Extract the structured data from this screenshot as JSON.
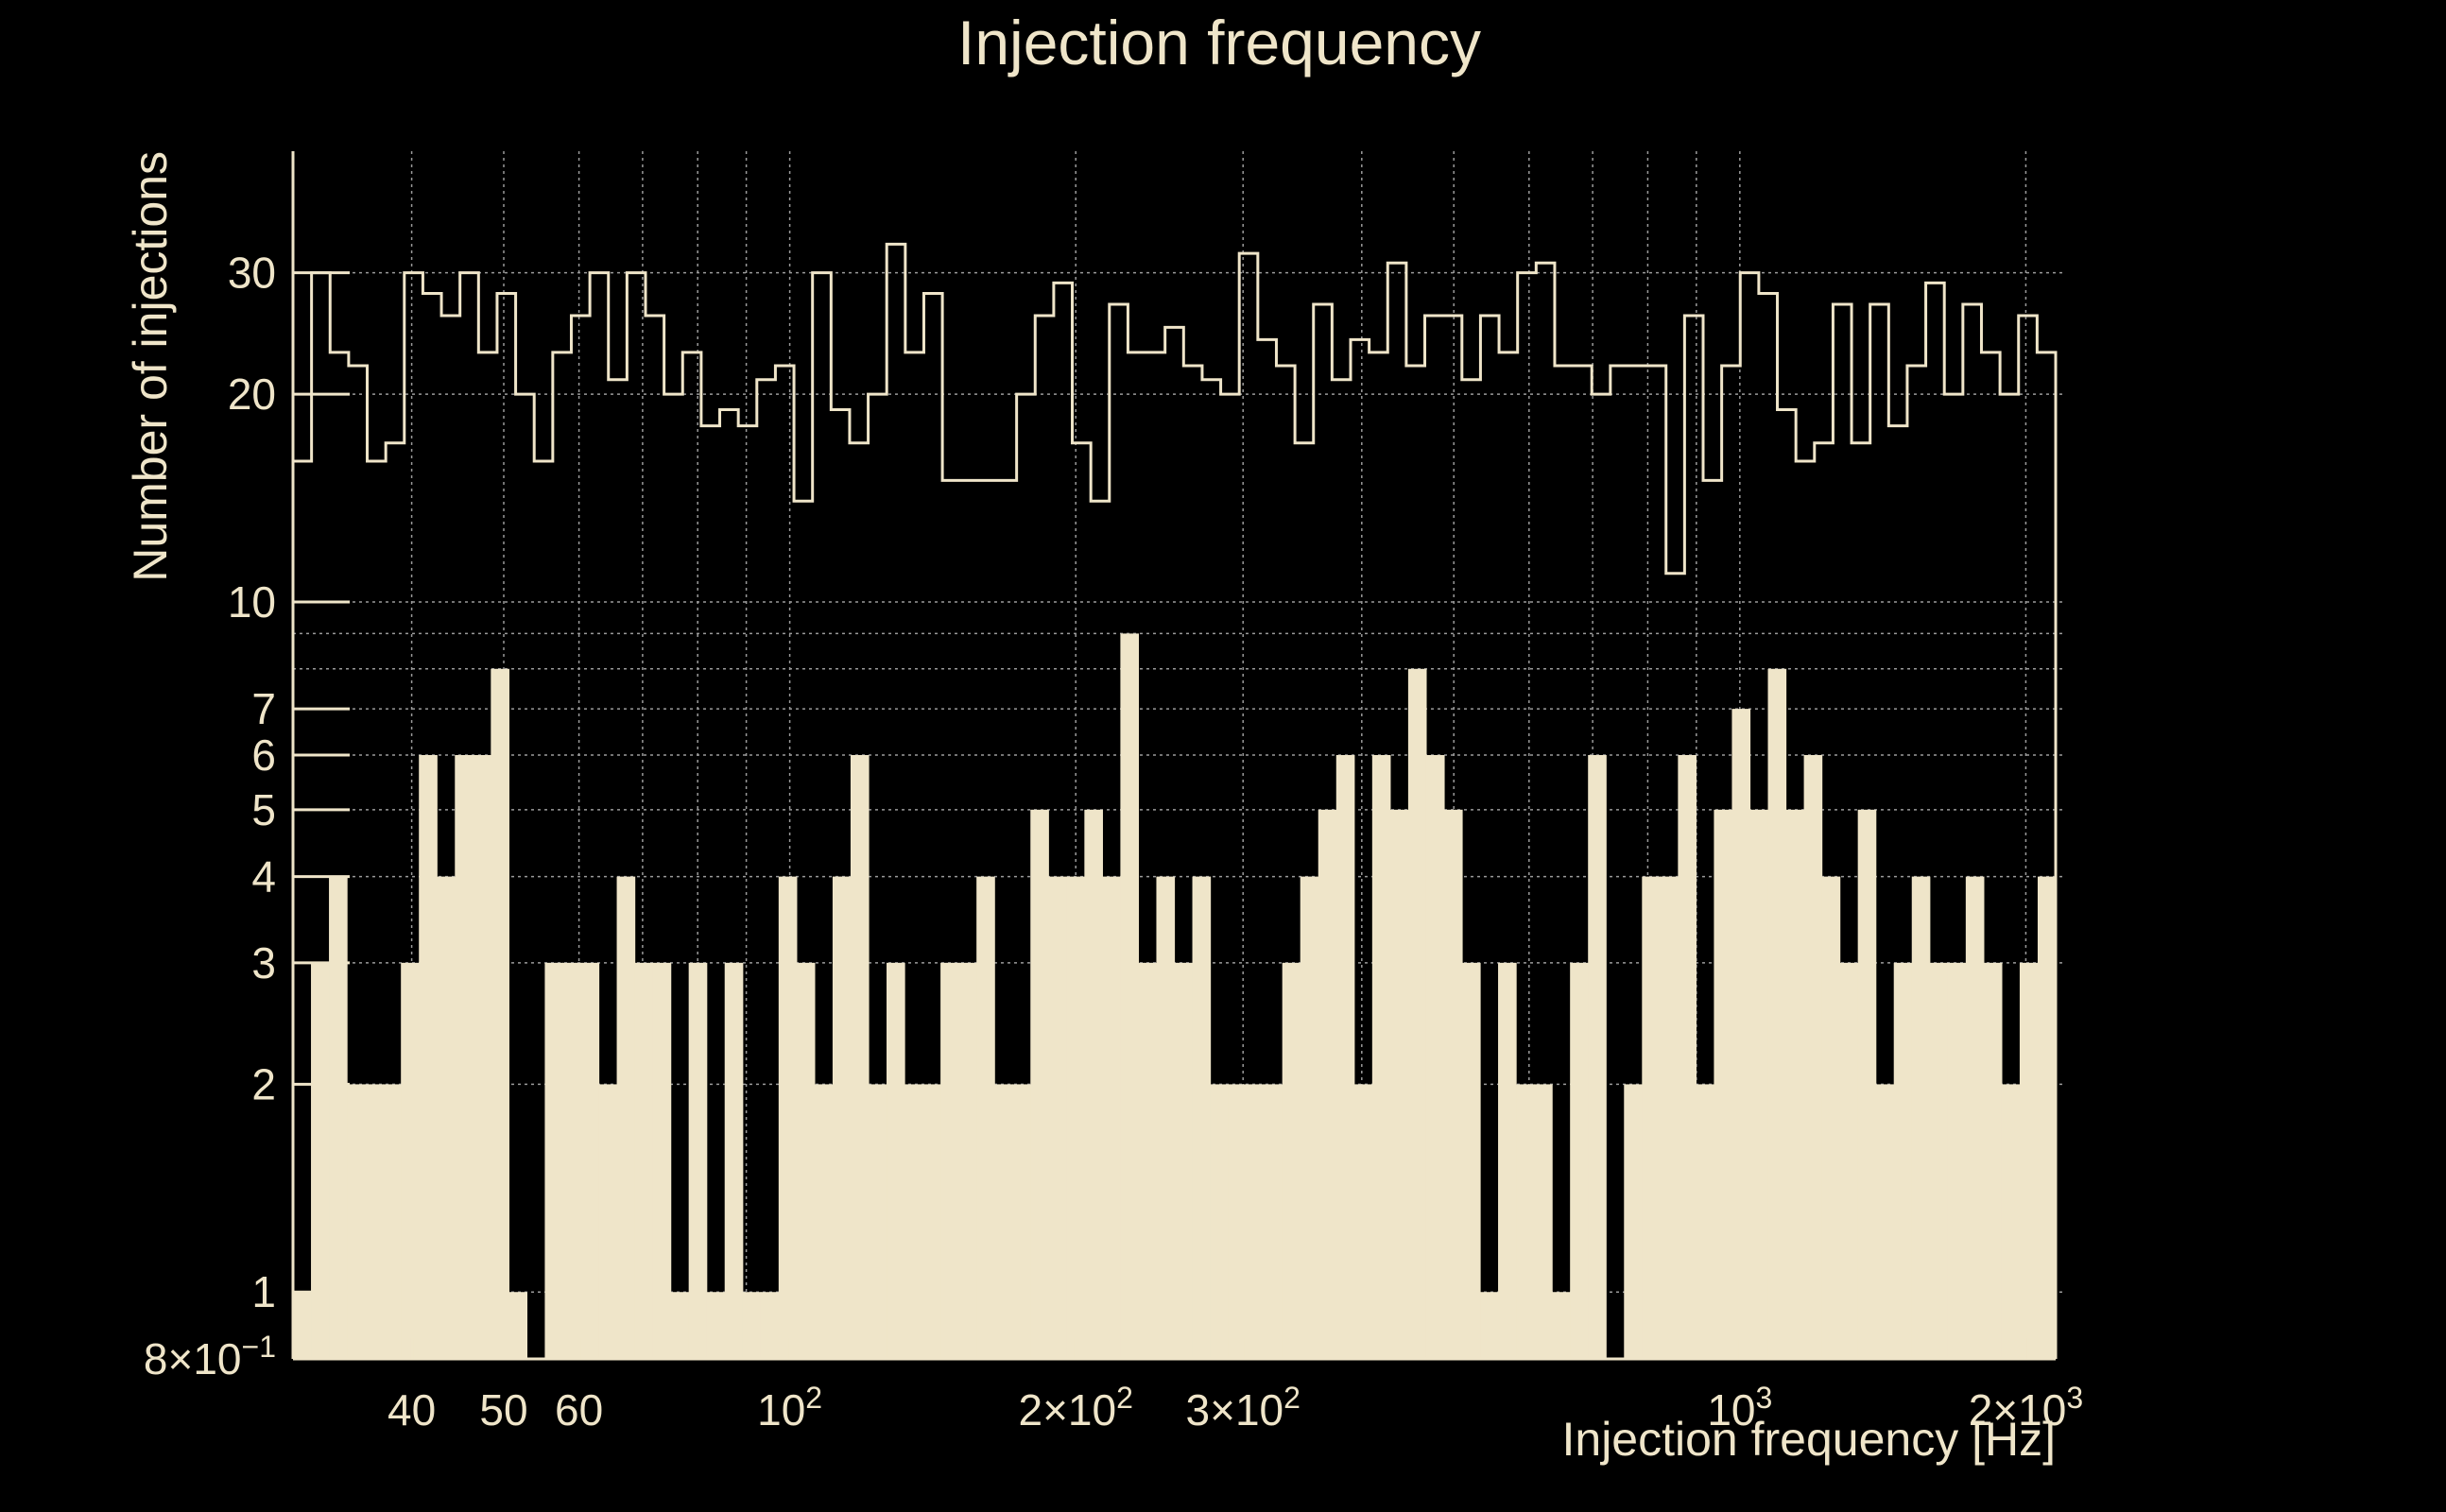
{
  "chart_data": {
    "type": "bar",
    "title": "Injection frequency",
    "xlabel": "Injection frequency [Hz]",
    "ylabel": "Number of injections",
    "x_scale": "log",
    "y_scale": "log",
    "xlim": [
      30,
      2150
    ],
    "ylim": [
      0.8,
      45
    ],
    "grid": true,
    "colors": {
      "background": "#000000",
      "foreground": "#efe5c9",
      "grid": "#9a9a9a"
    },
    "x_ticks": [
      {
        "value": 40,
        "label": "40"
      },
      {
        "value": 50,
        "label": "50"
      },
      {
        "value": 60,
        "label": "60"
      },
      {
        "value": 100,
        "label": "10",
        "sup": "2"
      },
      {
        "value": 200,
        "label": "2×10",
        "sup": "2"
      },
      {
        "value": 300,
        "label": "3×10",
        "sup": "2"
      },
      {
        "value": 1000,
        "label": "10",
        "sup": "3"
      },
      {
        "value": 2000,
        "label": "2×10",
        "sup": "3"
      }
    ],
    "y_ticks": [
      {
        "value": 0.8,
        "label": "8×10",
        "sup": "−1"
      },
      {
        "value": 1,
        "label": "1"
      },
      {
        "value": 2,
        "label": "2"
      },
      {
        "value": 3,
        "label": "3"
      },
      {
        "value": 4,
        "label": "4"
      },
      {
        "value": 5,
        "label": "5"
      },
      {
        "value": 6,
        "label": "6"
      },
      {
        "value": 7,
        "label": "7"
      },
      {
        "value": 10,
        "label": "10"
      },
      {
        "value": 20,
        "label": "20"
      },
      {
        "value": 30,
        "label": "30"
      }
    ],
    "bin_edges": [
      30,
      34.5,
      39.6,
      45.6,
      52.4,
      60.2,
      69.2,
      79.6,
      91.5,
      105.2,
      120.9,
      139.0,
      159.8,
      183.7,
      211.2,
      242.8,
      279.1,
      320.8,
      368.8,
      423.9,
      487.3,
      560.2,
      644.0,
      740.3,
      851.0,
      978.2,
      1124.5,
      1292.7,
      1486.0,
      1708.2,
      1963.6,
      2150
    ],
    "series": [
      {
        "style": "step",
        "values": [
          16,
          30,
          23,
          22,
          16,
          17,
          30,
          28,
          26,
          30,
          23,
          28,
          20,
          16,
          23,
          26,
          30,
          21,
          30,
          26,
          20,
          23,
          18,
          19,
          18,
          21,
          22,
          14,
          30,
          19,
          17,
          20,
          33,
          23,
          28,
          15,
          15,
          15,
          15,
          20,
          26,
          29,
          17,
          14,
          27,
          23,
          23,
          25,
          22,
          21,
          20,
          32,
          24,
          22,
          17,
          27,
          21,
          24,
          23,
          31,
          22,
          26,
          26,
          21,
          26,
          23,
          30,
          31,
          22,
          22,
          20,
          22,
          22,
          22,
          11,
          26,
          15,
          22,
          30,
          28,
          19,
          16,
          17,
          27,
          17,
          27,
          18,
          22,
          29,
          20,
          27,
          23,
          20,
          26,
          23
        ],
        "bins": 95
      },
      {
        "style": "filled",
        "values": [
          1,
          3,
          4,
          2,
          2,
          2,
          3,
          6,
          4,
          6,
          6,
          8,
          1,
          0.8,
          3,
          3,
          3,
          2,
          4,
          3,
          3,
          1,
          3,
          1,
          3,
          1,
          1,
          4,
          3,
          2,
          4,
          6,
          2,
          3,
          2,
          2,
          3,
          3,
          4,
          2,
          2,
          5,
          4,
          4,
          5,
          4,
          9,
          3,
          4,
          3,
          4,
          2,
          2,
          2,
          2,
          3,
          4,
          5,
          6,
          2,
          6,
          5,
          8,
          6,
          5,
          3,
          1,
          3,
          2,
          2,
          1,
          3,
          6,
          0.8,
          2,
          4,
          4,
          6,
          2,
          5,
          7,
          5,
          8,
          5,
          6,
          4,
          3,
          5,
          2,
          3,
          4,
          3,
          3,
          4,
          3,
          2,
          3,
          4
        ],
        "bins": 98
      }
    ]
  }
}
